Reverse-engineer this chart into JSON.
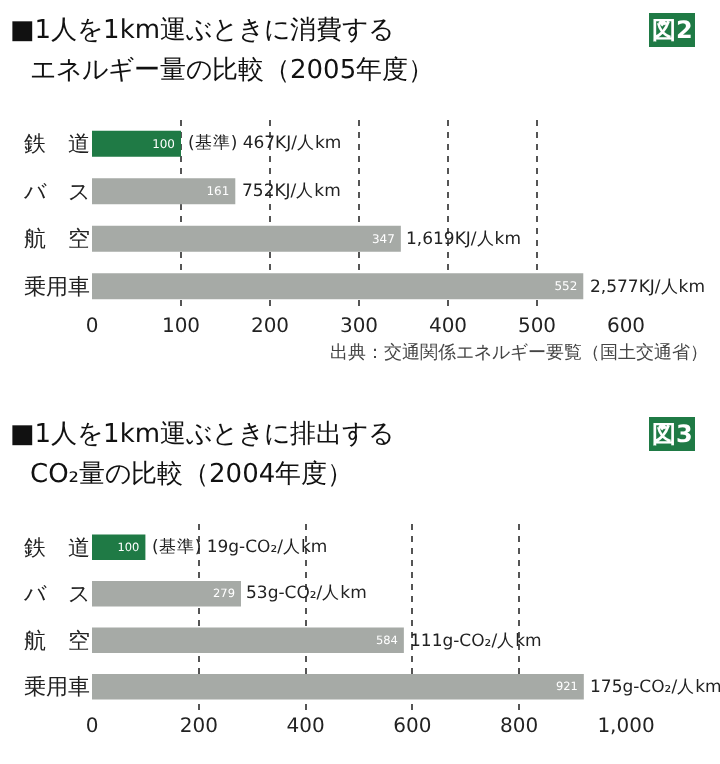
{
  "chart_data": [
    {
      "type": "bar",
      "orientation": "horizontal",
      "title": "■1人を1km運ぶときに消費する",
      "subtitle": "エネルギー量の比較（2005年度）",
      "categories": [
        "鉄　道",
        "バ　ス",
        "航　空",
        "乗用車"
      ],
      "values": [
        100,
        161,
        347,
        552
      ],
      "colors": [
        "#1f7a45",
        "#a6aaa6",
        "#a6aaa6",
        "#a6aaa6"
      ],
      "value_labels": [
        "100",
        "161",
        "347",
        "552"
      ],
      "xlim": [
        0,
        600
      ],
      "xticks": [
        0,
        100,
        200,
        300,
        400,
        500,
        600
      ],
      "grid": "x",
      "annotations": [
        {
          "text": "(基準) 467KJ/人km",
          "x": 100,
          "y": "鉄　道"
        },
        {
          "text": "752KJ/人km",
          "x": 161,
          "y": "バ　ス"
        },
        {
          "text": "1,619KJ/人km",
          "x": 347,
          "y": "航　空"
        },
        {
          "text": "2,577KJ/人km",
          "x": 552,
          "y": "乗用車"
        },
        "図2",
        "出典：交通関係エネルギー要覧（国土交通省）"
      ]
    },
    {
      "type": "bar",
      "orientation": "horizontal",
      "title": "■1人を1km運ぶときに排出する",
      "subtitle": "CO₂量の比較（2004年度）",
      "categories": [
        "鉄　道",
        "バ　ス",
        "航　空",
        "乗用車"
      ],
      "values": [
        100,
        279,
        584,
        921
      ],
      "colors": [
        "#1f7a45",
        "#a6aaa6",
        "#a6aaa6",
        "#a6aaa6"
      ],
      "value_labels": [
        "100",
        "279",
        "584",
        "921"
      ],
      "xlim": [
        0,
        1000
      ],
      "xticks": [
        0,
        200,
        400,
        600,
        800,
        {
          "value": 1000,
          "label": "1,000"
        }
      ],
      "grid": "x",
      "annotations": [
        {
          "text": "(基準) 19g-CO₂/人km",
          "x": 100,
          "y": "鉄　道"
        },
        {
          "text": "53g-CO₂/人km",
          "x": 279,
          "y": "バ　ス"
        },
        {
          "text": "111g-CO₂/人km",
          "x": 584,
          "y": "航　空"
        },
        {
          "text": "175g-CO₂/人km",
          "x": 921,
          "y": "乗用車"
        },
        "図3"
      ]
    }
  ]
}
